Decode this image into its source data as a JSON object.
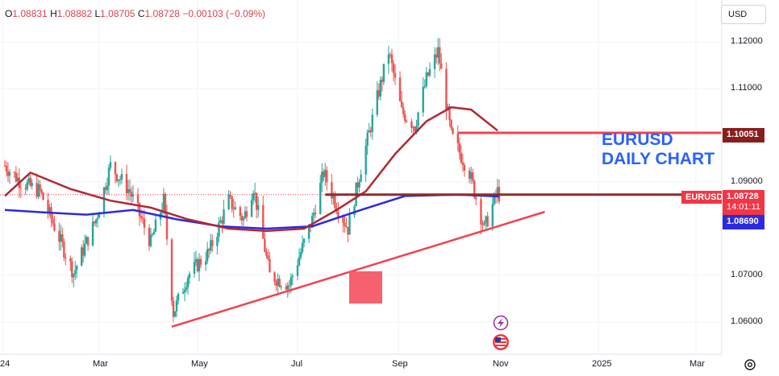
{
  "ohlc": {
    "o_key": "O",
    "o_val": "1.08831",
    "h_key": "H",
    "h_val": "1.08882",
    "l_key": "L",
    "l_val": "1.08705",
    "c_key": "C",
    "c_val": "1.08728",
    "change": "−0.00103 (−0.09%)"
  },
  "currency_selector": "USD",
  "annotation": {
    "line1": "EURUSD",
    "line2": "DAILY CHART"
  },
  "price_tags": {
    "level": "1.10051",
    "symbol": "EURUSD",
    "price": "1.08728",
    "countdown": "14:01:11",
    "ma": "1.08690"
  },
  "colors": {
    "up": "#26a69a",
    "down": "#ef5350",
    "ma_fast": "#b22833",
    "ma_slow": "#2a2ae0",
    "trendline": "#f0434f",
    "level": "#f0434f",
    "tag_red": "#f23645",
    "tag_blue": "#2a2ae0",
    "annotation": "#2962ff"
  },
  "icons": [
    "lightning-icon",
    "us-flag-icon",
    "settings-gear-icon"
  ],
  "chart_data": {
    "type": "candlestick",
    "symbol": "EURUSD",
    "y_ticks": [
      "1.12000",
      "1.11000",
      "1.09000",
      "1.07000",
      "1.06000"
    ],
    "x_ticks": [
      "24",
      "Mar",
      "May",
      "Jul",
      "Sep",
      "Nov",
      "2025",
      "Mar"
    ],
    "ylim": [
      1.0555,
      1.1225
    ],
    "horizontal_level": 1.10051,
    "current_price": 1.08728,
    "ma_value": 1.0869,
    "price_path": [
      {
        "date": "2024-01-02",
        "close": 1.0935
      },
      {
        "date": "2024-01-12",
        "close": 1.09
      },
      {
        "date": "2024-01-24",
        "close": 1.088
      },
      {
        "date": "2024-02-05",
        "close": 1.078
      },
      {
        "date": "2024-02-14",
        "close": 1.0705
      },
      {
        "date": "2024-02-28",
        "close": 1.082
      },
      {
        "date": "2024-03-08",
        "close": 1.0935
      },
      {
        "date": "2024-03-20",
        "close": 1.088
      },
      {
        "date": "2024-04-02",
        "close": 1.077
      },
      {
        "date": "2024-04-10",
        "close": 1.086
      },
      {
        "date": "2024-04-16",
        "close": 1.062
      },
      {
        "date": "2024-04-25",
        "close": 1.07
      },
      {
        "date": "2024-05-08",
        "close": 1.075
      },
      {
        "date": "2024-05-20",
        "close": 1.086
      },
      {
        "date": "2024-05-29",
        "close": 1.082
      },
      {
        "date": "2024-06-04",
        "close": 1.089
      },
      {
        "date": "2024-06-14",
        "close": 1.07
      },
      {
        "date": "2024-06-26",
        "close": 1.068
      },
      {
        "date": "2024-07-10",
        "close": 1.082
      },
      {
        "date": "2024-07-17",
        "close": 1.092
      },
      {
        "date": "2024-07-25",
        "close": 1.085
      },
      {
        "date": "2024-08-01",
        "close": 1.08
      },
      {
        "date": "2024-08-09",
        "close": 1.093
      },
      {
        "date": "2024-08-19",
        "close": 1.108
      },
      {
        "date": "2024-08-26",
        "close": 1.118
      },
      {
        "date": "2024-09-03",
        "close": 1.105
      },
      {
        "date": "2024-09-11",
        "close": 1.102
      },
      {
        "date": "2024-09-18",
        "close": 1.112
      },
      {
        "date": "2024-09-25",
        "close": 1.118
      },
      {
        "date": "2024-10-03",
        "close": 1.1
      },
      {
        "date": "2024-10-14",
        "close": 1.092
      },
      {
        "date": "2024-10-23",
        "close": 1.08
      },
      {
        "date": "2024-10-31",
        "close": 1.088
      },
      {
        "date": "2024-11-01",
        "close": 1.08728
      }
    ],
    "ma_fast": [
      {
        "date": "2024-01-02",
        "value": 1.087
      },
      {
        "date": "2024-01-18",
        "value": 1.092
      },
      {
        "date": "2024-02-12",
        "value": 1.0885
      },
      {
        "date": "2024-03-08",
        "value": 1.086
      },
      {
        "date": "2024-04-02",
        "value": 1.0845
      },
      {
        "date": "2024-04-25",
        "value": 1.082
      },
      {
        "date": "2024-05-20",
        "value": 1.08
      },
      {
        "date": "2024-06-12",
        "value": 1.0795
      },
      {
        "date": "2024-07-05",
        "value": 1.08
      },
      {
        "date": "2024-07-25",
        "value": 1.084
      },
      {
        "date": "2024-08-12",
        "value": 1.088
      },
      {
        "date": "2024-08-30",
        "value": 1.096
      },
      {
        "date": "2024-09-18",
        "value": 1.103
      },
      {
        "date": "2024-10-03",
        "value": 1.106
      },
      {
        "date": "2024-10-15",
        "value": 1.1055
      },
      {
        "date": "2024-10-31",
        "value": 1.101
      }
    ],
    "ma_slow": [
      {
        "date": "2024-01-02",
        "value": 1.084
      },
      {
        "date": "2024-01-26",
        "value": 1.0835
      },
      {
        "date": "2024-02-22",
        "value": 1.083
      },
      {
        "date": "2024-03-22",
        "value": 1.084
      },
      {
        "date": "2024-04-18",
        "value": 1.082
      },
      {
        "date": "2024-05-15",
        "value": 1.0805
      },
      {
        "date": "2024-06-12",
        "value": 1.08
      },
      {
        "date": "2024-07-10",
        "value": 1.0805
      },
      {
        "date": "2024-08-09",
        "value": 1.084
      },
      {
        "date": "2024-09-05",
        "value": 1.087
      },
      {
        "date": "2024-10-07",
        "value": 1.0873
      },
      {
        "date": "2024-11-01",
        "value": 1.0869
      }
    ],
    "trendline": [
      {
        "date": "2024-04-15",
        "value": 1.059
      },
      {
        "date": "2024-11-29",
        "value": 1.0836
      }
    ],
    "current_level_line": {
      "from": "2024-07-18",
      "value": 1.08728
    },
    "level_segment": {
      "from": "2024-10-07",
      "to": "2025-01-13",
      "value": 1.10051
    }
  }
}
